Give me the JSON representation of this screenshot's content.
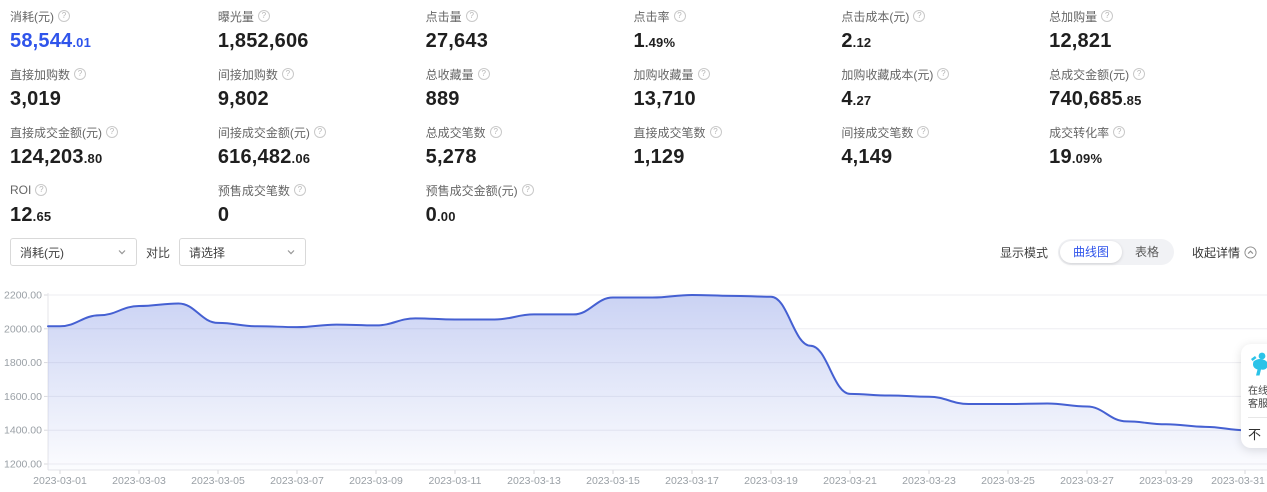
{
  "metrics": {
    "rows": [
      [
        {
          "label": "消耗(元)",
          "int": "58,544",
          "dec": ".01",
          "highlight": true
        },
        {
          "label": "曝光量",
          "int": "1,852,606",
          "dec": ""
        },
        {
          "label": "点击量",
          "int": "27,643",
          "dec": ""
        },
        {
          "label": "点击率",
          "int": "1",
          "dec": ".49%"
        },
        {
          "label": "点击成本(元)",
          "int": "2",
          "dec": ".12"
        },
        {
          "label": "总加购量",
          "int": "12,821",
          "dec": ""
        }
      ],
      [
        {
          "label": "直接加购数",
          "int": "3,019",
          "dec": ""
        },
        {
          "label": "间接加购数",
          "int": "9,802",
          "dec": ""
        },
        {
          "label": "总收藏量",
          "int": "889",
          "dec": ""
        },
        {
          "label": "加购收藏量",
          "int": "13,710",
          "dec": ""
        },
        {
          "label": "加购收藏成本(元)",
          "int": "4",
          "dec": ".27"
        },
        {
          "label": "总成交金额(元)",
          "int": "740,685",
          "dec": ".85"
        }
      ],
      [
        {
          "label": "直接成交金额(元)",
          "int": "124,203",
          "dec": ".80"
        },
        {
          "label": "间接成交金额(元)",
          "int": "616,482",
          "dec": ".06"
        },
        {
          "label": "总成交笔数",
          "int": "5,278",
          "dec": ""
        },
        {
          "label": "直接成交笔数",
          "int": "1,129",
          "dec": ""
        },
        {
          "label": "间接成交笔数",
          "int": "4,149",
          "dec": ""
        },
        {
          "label": "成交转化率",
          "int": "19",
          "dec": ".09%"
        }
      ],
      [
        {
          "label": "ROI",
          "int": "12",
          "dec": ".65"
        },
        {
          "label": "预售成交笔数",
          "int": "0",
          "dec": ""
        },
        {
          "label": "预售成交金额(元)",
          "int": "0",
          "dec": ".00"
        }
      ]
    ]
  },
  "controls": {
    "metric_select": "消耗(元)",
    "compare_label": "对比",
    "compare_placeholder": "请选择",
    "display_mode_label": "显示模式",
    "mode_curve": "曲线图",
    "mode_table": "表格",
    "collapse_label": "收起详情"
  },
  "icons": {
    "help_icon": "?",
    "chevron_down_icon": "v",
    "collapse_icon": "circle-chevron-up",
    "service_icon": "cyan-person-mascot"
  },
  "chart_data": {
    "type": "area",
    "title": "",
    "xlabel": "",
    "ylabel": "",
    "legend": "none",
    "grid": true,
    "smooth": true,
    "line_color": "#4560d2",
    "fill_top_color": "#5b74dc",
    "ylim": [
      1200,
      2200
    ],
    "y_ticks": [
      2200,
      2000,
      1800,
      1600,
      1400,
      1200
    ],
    "y_tick_labels": [
      "2200.00",
      "2000.00",
      "1800.00",
      "1600.00",
      "1400.00",
      "1200.00"
    ],
    "x_label_every": 2,
    "x": [
      "2023-03-01",
      "2023-03-02",
      "2023-03-03",
      "2023-03-04",
      "2023-03-05",
      "2023-03-06",
      "2023-03-07",
      "2023-03-08",
      "2023-03-09",
      "2023-03-10",
      "2023-03-11",
      "2023-03-12",
      "2023-03-13",
      "2023-03-14",
      "2023-03-15",
      "2023-03-16",
      "2023-03-17",
      "2023-03-18",
      "2023-03-19",
      "2023-03-20",
      "2023-03-21",
      "2023-03-22",
      "2023-03-23",
      "2023-03-24",
      "2023-03-25",
      "2023-03-26",
      "2023-03-27",
      "2023-03-28",
      "2023-03-29",
      "2023-03-30",
      "2023-03-31"
    ],
    "series": [
      {
        "name": "消耗(元)",
        "values": [
          2015,
          2080,
          2135,
          2150,
          2035,
          2015,
          2010,
          2025,
          2020,
          2062,
          2055,
          2055,
          2085,
          2085,
          2185,
          2185,
          2200,
          2195,
          2190,
          1900,
          1615,
          1605,
          1598,
          1555,
          1555,
          1558,
          1540,
          1452,
          1435,
          1420,
          1400
        ]
      }
    ]
  },
  "widget": {
    "service_line1": "在线",
    "service_line2": "客服",
    "bottom_text": "不"
  }
}
